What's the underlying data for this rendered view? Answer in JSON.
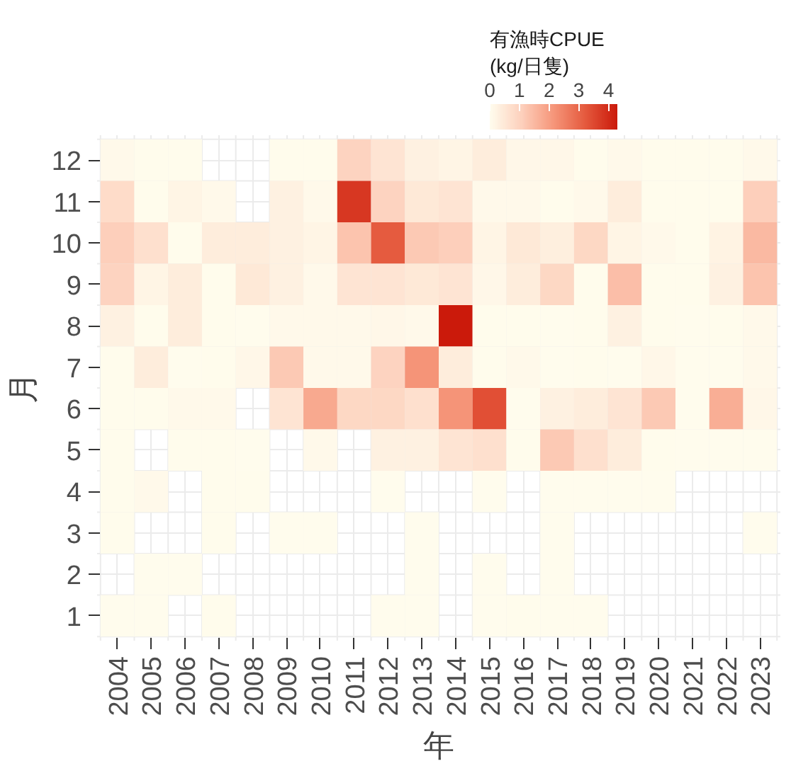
{
  "chart_data": {
    "type": "heatmap",
    "xlabel": "年",
    "ylabel": "月",
    "clabel": "有漁時CPUE\n(kg/日隻)",
    "grid": true,
    "categories": [
      "2004",
      "2005",
      "2006",
      "2007",
      "2008",
      "2009",
      "2010",
      "2011",
      "2012",
      "2013",
      "2014",
      "2015",
      "2016",
      "2017",
      "2018",
      "2019",
      "2020",
      "2021",
      "2022",
      "2023"
    ],
    "y_categories": [
      "12",
      "11",
      "10",
      "9",
      "8",
      "7",
      "6",
      "5",
      "4",
      "3",
      "2",
      "1"
    ],
    "cells": [
      [
        0.1,
        0.05,
        0.05,
        null,
        null,
        0.05,
        0.05,
        1.0,
        0.6,
        0.3,
        0.2,
        0.4,
        0.15,
        0.15,
        0.05,
        0.1,
        0.05,
        0.05,
        0.05,
        0.1
      ],
      [
        0.8,
        0.05,
        0.2,
        0.1,
        null,
        0.3,
        0.1,
        3.8,
        1.0,
        0.5,
        0.6,
        0.1,
        0.1,
        0.05,
        0.1,
        0.4,
        0.05,
        0.05,
        0.05,
        1.1
      ],
      [
        1.1,
        0.7,
        0.05,
        0.4,
        0.4,
        0.3,
        0.2,
        1.3,
        3.2,
        1.2,
        1.1,
        0.2,
        0.5,
        0.35,
        0.9,
        0.2,
        0.1,
        0.05,
        0.25,
        1.5
      ],
      [
        1.0,
        0.2,
        0.4,
        0.05,
        0.5,
        0.3,
        0.1,
        0.6,
        0.6,
        0.5,
        0.6,
        0.15,
        0.4,
        0.9,
        0.05,
        1.4,
        0.05,
        0.05,
        0.3,
        1.3
      ],
      [
        0.3,
        0.05,
        0.4,
        0.05,
        0.02,
        0.1,
        0.1,
        0.1,
        0.15,
        0.1,
        4.3,
        0.05,
        0.05,
        0.02,
        0.05,
        0.3,
        0.05,
        0.02,
        0.05,
        0.1
      ],
      [
        0.05,
        0.4,
        0.02,
        0.05,
        0.15,
        1.2,
        0.1,
        0.1,
        1.0,
        2.2,
        0.4,
        0.05,
        0.1,
        0.02,
        0.05,
        0.02,
        0.15,
        0.02,
        0.02,
        0.1
      ],
      [
        0.05,
        0.05,
        0.1,
        0.1,
        null,
        0.6,
        1.8,
        0.9,
        0.9,
        0.7,
        2.2,
        3.4,
        0.02,
        0.3,
        0.4,
        0.6,
        1.2,
        0.02,
        1.7,
        0.15
      ],
      [
        0.05,
        null,
        0.05,
        0.05,
        0.02,
        null,
        0.1,
        null,
        0.3,
        0.3,
        0.6,
        0.7,
        0.05,
        1.2,
        0.7,
        0.4,
        0.05,
        0.02,
        0.02,
        0.02
      ],
      [
        0.05,
        0.1,
        null,
        0.05,
        0.05,
        null,
        null,
        null,
        0.02,
        null,
        null,
        0.02,
        null,
        0.02,
        0.02,
        0.02,
        0.02,
        null,
        null,
        null
      ],
      [
        0.05,
        null,
        null,
        0.05,
        null,
        0.02,
        0.02,
        null,
        null,
        0.02,
        null,
        null,
        null,
        0.02,
        null,
        null,
        null,
        null,
        null,
        0.02
      ],
      [
        null,
        0.02,
        0.02,
        null,
        null,
        null,
        null,
        null,
        null,
        0.02,
        null,
        0.02,
        null,
        0.02,
        null,
        null,
        null,
        null,
        null,
        null
      ],
      [
        0.02,
        0.02,
        null,
        0.05,
        null,
        null,
        null,
        null,
        0.02,
        0.02,
        null,
        0.02,
        0.05,
        0.03,
        0.02,
        null,
        null,
        null,
        null,
        null
      ]
    ],
    "clim": [
      0,
      4.3
    ],
    "cticks": [
      0,
      1,
      2,
      3,
      4
    ]
  }
}
